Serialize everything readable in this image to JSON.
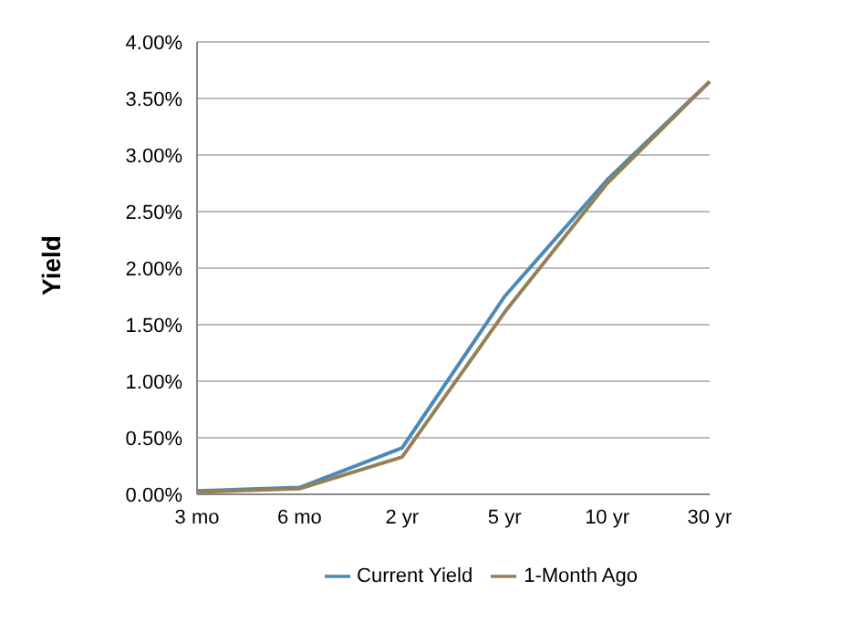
{
  "chart_data": {
    "type": "line",
    "ylabel": "Yield",
    "categories": [
      "3 mo",
      "6 mo",
      "2 yr",
      "5 yr",
      "10 yr",
      "30 yr"
    ],
    "series": [
      {
        "name": "Current Yield",
        "color": "#4a8ab8",
        "values": [
          0.03,
          0.06,
          0.41,
          1.75,
          2.78,
          3.65
        ]
      },
      {
        "name": "1-Month Ago",
        "color": "#968056",
        "values": [
          0.02,
          0.05,
          0.33,
          1.61,
          2.75,
          3.65
        ]
      }
    ],
    "ylim": [
      0,
      4
    ],
    "yticks": [
      {
        "value": 0,
        "label": "0.00%"
      },
      {
        "value": 0.5,
        "label": "0.50%"
      },
      {
        "value": 1,
        "label": "1.00%"
      },
      {
        "value": 1.5,
        "label": "1.50%"
      },
      {
        "value": 2,
        "label": "2.00%"
      },
      {
        "value": 2.5,
        "label": "2.50%"
      },
      {
        "value": 3,
        "label": "3.00%"
      },
      {
        "value": 3.5,
        "label": "3.50%"
      },
      {
        "value": 4,
        "label": "4.00%"
      }
    ],
    "grid": "y",
    "legend": "bottom",
    "marker": "none",
    "line_style": "solid"
  }
}
